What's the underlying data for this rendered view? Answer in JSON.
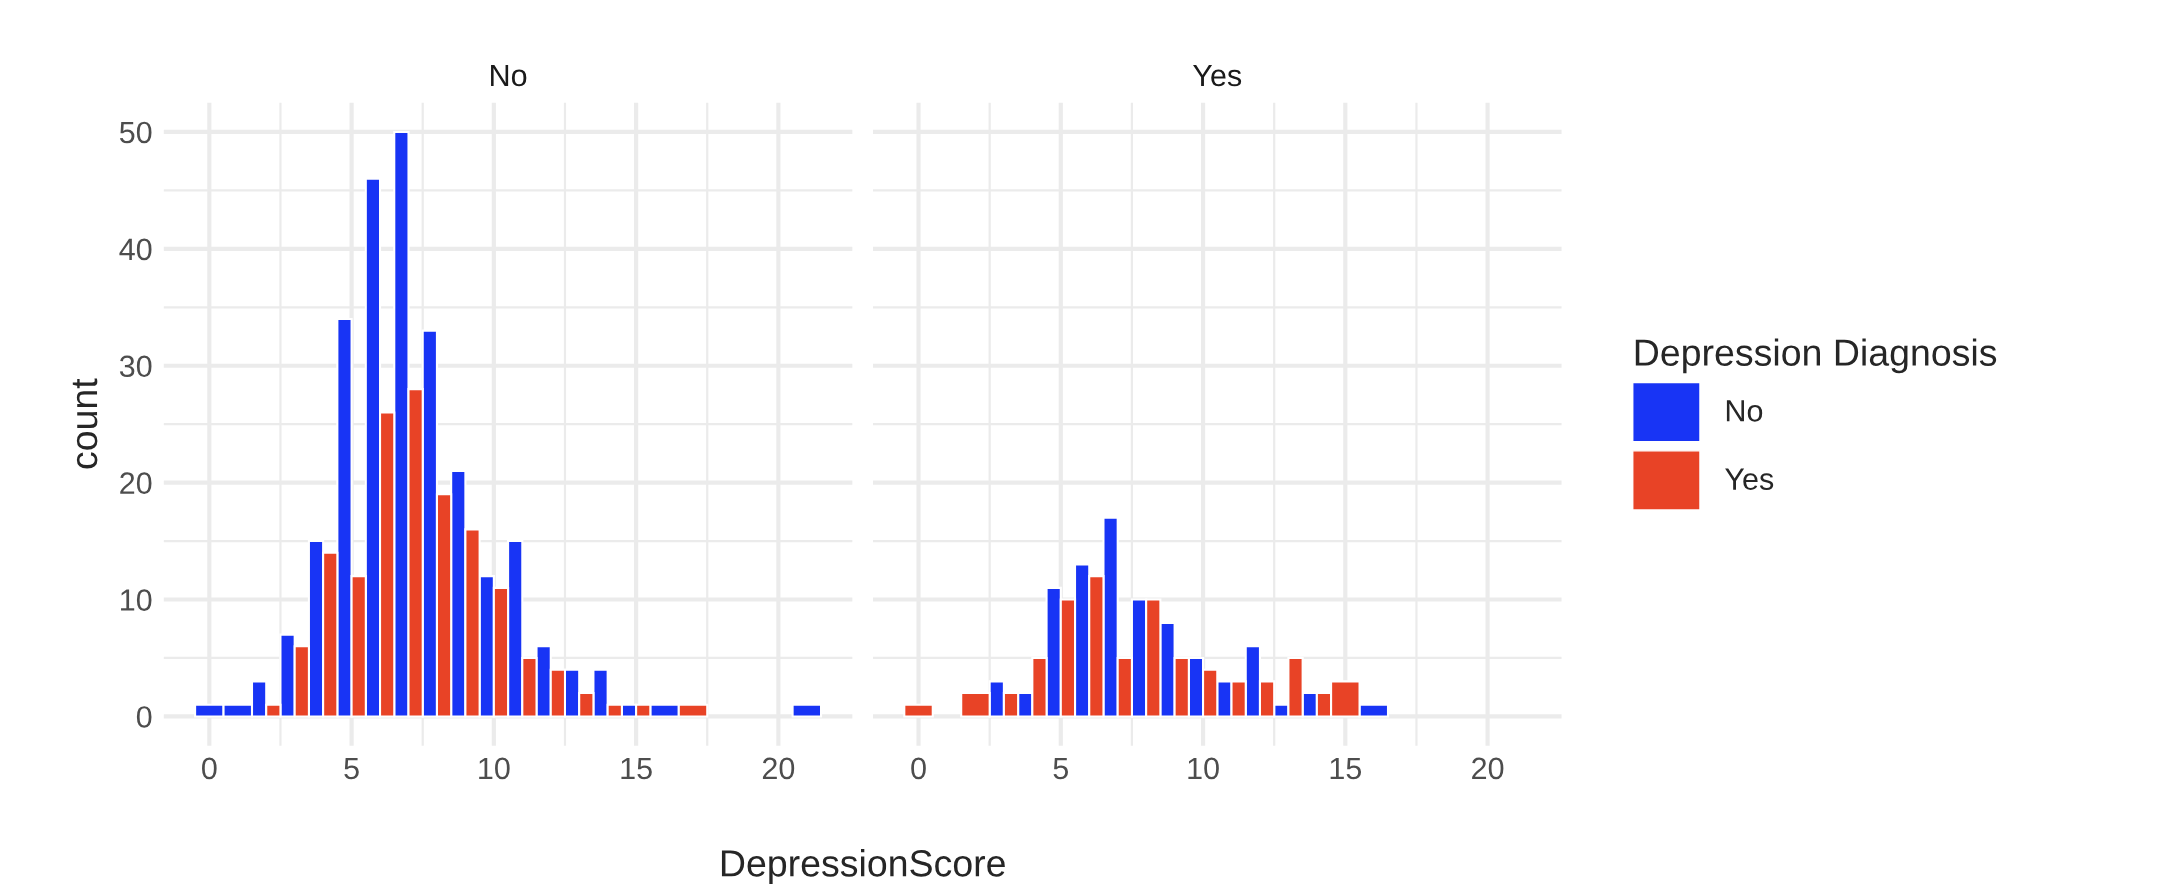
{
  "chart_data": [
    {
      "type": "bar",
      "title": "No",
      "xlabel": "DepressionScore",
      "ylabel": "count",
      "legend_title": "Depression Diagnosis",
      "x": [
        0,
        1,
        2,
        3,
        4,
        5,
        6,
        7,
        8,
        9,
        10,
        11,
        12,
        13,
        14,
        15,
        16,
        17,
        18,
        19,
        20,
        21
      ],
      "series": [
        {
          "name": "No",
          "color": "#1834f5",
          "values": [
            1,
            1,
            3,
            7,
            15,
            34,
            46,
            50,
            33,
            21,
            12,
            15,
            6,
            4,
            4,
            1,
            1,
            null,
            null,
            null,
            null,
            1
          ]
        },
        {
          "name": "Yes",
          "color": "#e84326",
          "values": [
            null,
            null,
            1,
            6,
            14,
            12,
            26,
            28,
            19,
            16,
            11,
            5,
            4,
            2,
            1,
            1,
            null,
            1,
            null,
            null,
            null,
            null
          ]
        }
      ],
      "xlim": [
        -1.6,
        22.6
      ],
      "ylim": [
        -2.5,
        52.5
      ],
      "xticks": [
        0,
        {
          "value": 2.5,
          "label": null
        },
        5,
        {
          "value": 7.5,
          "label": null
        },
        10,
        {
          "value": 12.5,
          "label": null
        },
        15,
        {
          "value": 17.5,
          "label": null
        },
        20
      ],
      "yticks": [
        0,
        {
          "value": 5,
          "label": null
        },
        10,
        {
          "value": 15,
          "label": null
        },
        20,
        {
          "value": 25,
          "label": null
        },
        30,
        {
          "value": 35,
          "label": null
        },
        40,
        {
          "value": 45,
          "label": null
        },
        50
      ],
      "grid": true,
      "legend": "right"
    },
    {
      "type": "bar",
      "title": "Yes",
      "x": [
        0,
        1,
        2,
        3,
        4,
        5,
        6,
        7,
        8,
        9,
        10,
        11,
        12,
        13,
        14,
        15,
        16
      ],
      "series": [
        {
          "color": "#1834f5",
          "values": [
            null,
            null,
            null,
            3,
            2,
            11,
            13,
            17,
            10,
            8,
            5,
            3,
            6,
            1,
            2,
            null,
            1
          ]
        },
        {
          "color": "#e84326",
          "values": [
            1,
            null,
            2,
            2,
            5,
            10,
            12,
            5,
            10,
            5,
            4,
            3,
            3,
            5,
            2,
            3,
            null
          ]
        }
      ],
      "xlim": [
        -1.6,
        22.6
      ],
      "ylim": [
        -2.5,
        52.5
      ],
      "xticks": [
        0,
        {
          "value": 2.5,
          "label": null
        },
        5,
        {
          "value": 7.5,
          "label": null
        },
        10,
        {
          "value": 12.5,
          "label": null
        },
        15,
        {
          "value": 17.5,
          "label": null
        },
        20
      ],
      "yticks": [
        0,
        {
          "value": 5,
          "label": null
        },
        10,
        {
          "value": 15,
          "label": null
        },
        20,
        {
          "value": 25,
          "label": null
        },
        30,
        {
          "value": 35,
          "label": null
        },
        40,
        {
          "value": 45,
          "label": null
        },
        50
      ],
      "grid": true,
      "tick_labels": "x"
    }
  ]
}
